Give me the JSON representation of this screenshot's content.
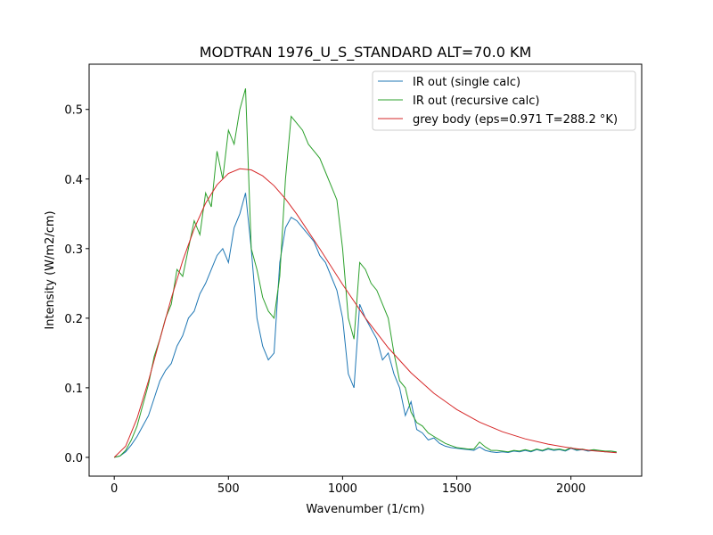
{
  "chart_data": {
    "type": "line",
    "title": "MODTRAN 1976_U_S_STANDARD ALT=70.0 KM",
    "xlabel": "Wavenumber (1/cm)",
    "ylabel": "Intensity (W/m2/cm)",
    "xlim": [
      -110,
      2310
    ],
    "ylim": [
      -0.027,
      0.565
    ],
    "xticks": [
      0,
      500,
      1000,
      1500,
      2000
    ],
    "xtick_labels": [
      "0",
      "500",
      "1000",
      "1500",
      "2000"
    ],
    "yticks": [
      0.0,
      0.1,
      0.2,
      0.3,
      0.4,
      0.5
    ],
    "ytick_labels": [
      "0.0",
      "0.1",
      "0.2",
      "0.3",
      "0.4",
      "0.5"
    ],
    "grid": false,
    "legend_position": "top-right",
    "series": [
      {
        "name": "IR out (single calc)",
        "color": "#1f77b4",
        "x": [
          0,
          25,
          50,
          75,
          100,
          125,
          150,
          175,
          200,
          225,
          250,
          275,
          300,
          325,
          350,
          375,
          400,
          425,
          450,
          475,
          500,
          525,
          550,
          575,
          600,
          625,
          650,
          675,
          700,
          725,
          750,
          775,
          800,
          825,
          850,
          875,
          900,
          925,
          950,
          975,
          1000,
          1025,
          1050,
          1075,
          1100,
          1125,
          1150,
          1175,
          1200,
          1225,
          1250,
          1275,
          1300,
          1325,
          1350,
          1375,
          1400,
          1425,
          1450,
          1475,
          1500,
          1525,
          1550,
          1575,
          1600,
          1625,
          1650,
          1675,
          1700,
          1725,
          1750,
          1775,
          1800,
          1825,
          1850,
          1875,
          1900,
          1925,
          1950,
          1975,
          2000,
          2025,
          2050,
          2075,
          2100,
          2125,
          2150,
          2175,
          2200
        ],
        "y": [
          0,
          0.002,
          0.008,
          0.018,
          0.03,
          0.045,
          0.06,
          0.085,
          0.11,
          0.125,
          0.135,
          0.16,
          0.175,
          0.2,
          0.21,
          0.235,
          0.25,
          0.27,
          0.29,
          0.3,
          0.28,
          0.33,
          0.35,
          0.38,
          0.3,
          0.2,
          0.16,
          0.14,
          0.15,
          0.28,
          0.33,
          0.345,
          0.34,
          0.33,
          0.32,
          0.31,
          0.29,
          0.28,
          0.26,
          0.24,
          0.2,
          0.12,
          0.1,
          0.22,
          0.2,
          0.185,
          0.17,
          0.14,
          0.15,
          0.12,
          0.1,
          0.06,
          0.08,
          0.04,
          0.035,
          0.025,
          0.028,
          0.02,
          0.016,
          0.014,
          0.013,
          0.012,
          0.011,
          0.01,
          0.015,
          0.01,
          0.008,
          0.007,
          0.008,
          0.007,
          0.009,
          0.008,
          0.01,
          0.008,
          0.011,
          0.009,
          0.012,
          0.01,
          0.011,
          0.009,
          0.013,
          0.01,
          0.011,
          0.009,
          0.01,
          0.009,
          0.008,
          0.009,
          0.007
        ]
      },
      {
        "name": "IR out (recursive calc)",
        "color": "#2ca02c",
        "x": [
          0,
          25,
          50,
          75,
          100,
          125,
          150,
          175,
          200,
          225,
          250,
          275,
          300,
          325,
          350,
          375,
          400,
          425,
          450,
          475,
          500,
          525,
          550,
          575,
          600,
          625,
          650,
          675,
          700,
          725,
          750,
          775,
          800,
          825,
          850,
          875,
          900,
          925,
          950,
          975,
          1000,
          1025,
          1050,
          1075,
          1100,
          1125,
          1150,
          1175,
          1200,
          1225,
          1250,
          1275,
          1300,
          1325,
          1350,
          1375,
          1400,
          1425,
          1450,
          1475,
          1500,
          1525,
          1550,
          1575,
          1600,
          1625,
          1650,
          1675,
          1700,
          1725,
          1750,
          1775,
          1800,
          1825,
          1850,
          1875,
          1900,
          1925,
          1950,
          1975,
          2000,
          2025,
          2050,
          2075,
          2100,
          2125,
          2150,
          2175,
          2200
        ],
        "y": [
          0,
          0.002,
          0.01,
          0.025,
          0.045,
          0.075,
          0.105,
          0.145,
          0.17,
          0.2,
          0.22,
          0.27,
          0.26,
          0.3,
          0.34,
          0.32,
          0.38,
          0.36,
          0.44,
          0.4,
          0.47,
          0.45,
          0.5,
          0.53,
          0.3,
          0.27,
          0.23,
          0.21,
          0.2,
          0.26,
          0.4,
          0.49,
          0.48,
          0.47,
          0.45,
          0.44,
          0.43,
          0.41,
          0.39,
          0.37,
          0.3,
          0.2,
          0.17,
          0.28,
          0.27,
          0.25,
          0.24,
          0.22,
          0.2,
          0.15,
          0.11,
          0.1,
          0.065,
          0.05,
          0.045,
          0.035,
          0.03,
          0.025,
          0.02,
          0.017,
          0.014,
          0.013,
          0.012,
          0.012,
          0.022,
          0.015,
          0.01,
          0.01,
          0.009,
          0.008,
          0.01,
          0.009,
          0.011,
          0.009,
          0.012,
          0.01,
          0.013,
          0.011,
          0.012,
          0.01,
          0.014,
          0.011,
          0.012,
          0.01,
          0.011,
          0.01,
          0.009,
          0.009,
          0.008
        ]
      },
      {
        "name": "grey body (eps=0.971 T=288.2 °K)",
        "color": "#d62728",
        "x": [
          0,
          50,
          100,
          150,
          200,
          250,
          300,
          350,
          400,
          450,
          500,
          550,
          600,
          650,
          700,
          750,
          800,
          900,
          1000,
          1100,
          1200,
          1300,
          1400,
          1500,
          1600,
          1700,
          1800,
          1900,
          2000,
          2100,
          2200
        ],
        "y": [
          0,
          0.016,
          0.0561,
          0.11,
          0.1696,
          0.2286,
          0.2826,
          0.3287,
          0.3652,
          0.3916,
          0.408,
          0.4147,
          0.4132,
          0.4046,
          0.3903,
          0.3714,
          0.3493,
          0.2997,
          0.2485,
          0.2002,
          0.1575,
          0.1215,
          0.092,
          0.0687,
          0.0506,
          0.0368,
          0.0265,
          0.019,
          0.0134,
          0.0094,
          0.0066
        ]
      }
    ]
  }
}
